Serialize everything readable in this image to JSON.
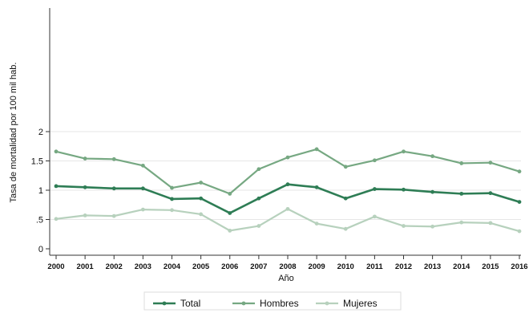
{
  "chart_data": {
    "type": "line",
    "title": "",
    "xlabel": "Año",
    "ylabel": "Tasa de mortalidad por 100 mil hab.",
    "x": [
      "2000",
      "2001",
      "2002",
      "2003",
      "2004",
      "2005",
      "2006",
      "2007",
      "2008",
      "2009",
      "2010",
      "2011",
      "2012",
      "2013",
      "2014",
      "2015",
      "2016"
    ],
    "yticks": [
      "0",
      ".5",
      "1",
      "1.5",
      "2"
    ],
    "ylim": [
      0,
      2
    ],
    "grid": true,
    "legend_position": "bottom",
    "series": [
      {
        "name": "Total",
        "color": "#2e7d55",
        "values": [
          1.07,
          1.05,
          1.03,
          1.03,
          0.85,
          0.86,
          0.61,
          0.86,
          1.1,
          1.05,
          0.86,
          1.02,
          1.01,
          0.97,
          0.94,
          0.95,
          0.8
        ]
      },
      {
        "name": "Hombres",
        "color": "#76a882",
        "values": [
          1.66,
          1.54,
          1.53,
          1.42,
          1.04,
          1.13,
          0.94,
          1.36,
          1.56,
          1.7,
          1.4,
          1.51,
          1.66,
          1.58,
          1.46,
          1.47,
          1.32
        ]
      },
      {
        "name": "Mujeres",
        "color": "#b7d1bd",
        "values": [
          0.51,
          0.57,
          0.56,
          0.67,
          0.66,
          0.59,
          0.31,
          0.39,
          0.68,
          0.43,
          0.34,
          0.55,
          0.39,
          0.38,
          0.45,
          0.44,
          0.3
        ]
      }
    ]
  }
}
